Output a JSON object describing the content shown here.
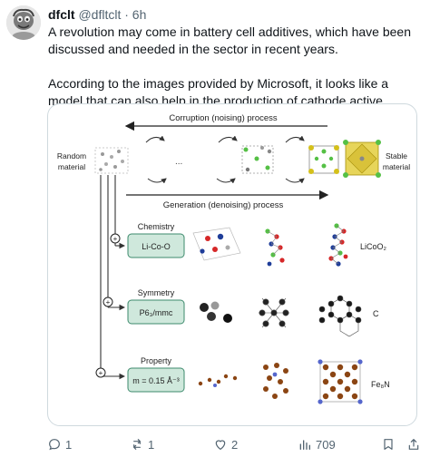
{
  "post": {
    "author_name": "dfclt",
    "handle": "@dfltclt",
    "separator": "·",
    "time": "6h",
    "paragraph1": "A revolution may come in battery cell additives, which have been discussed and needed in the sector in recent years.",
    "paragraph2": "According to the images provided by Microsoft, it looks like a model that can also help in the production of cathode active material."
  },
  "figure": {
    "top_process": "Corruption (noising) process",
    "bottom_process": "Generation (denoising) process",
    "random_material": [
      "Random",
      "material"
    ],
    "stable_material": [
      "Stable",
      "material"
    ],
    "ellipsis": "...",
    "rows": [
      {
        "label": "Chemistry",
        "value": "Li-Co-O",
        "result": "LiCoO₂"
      },
      {
        "label": "Symmetry",
        "value": "P6₃/mmc",
        "result": "C"
      },
      {
        "label": "Property",
        "value": "m = 0.15 Å⁻³",
        "result": "Fe₈N"
      }
    ],
    "plus": "+",
    "colors": {
      "condition_fill": "#cfe8dc",
      "condition_stroke": "#3c8a6c"
    }
  },
  "actions": {
    "reply_count": "1",
    "repost_count": "1",
    "like_count": "2",
    "view_count": "709"
  }
}
